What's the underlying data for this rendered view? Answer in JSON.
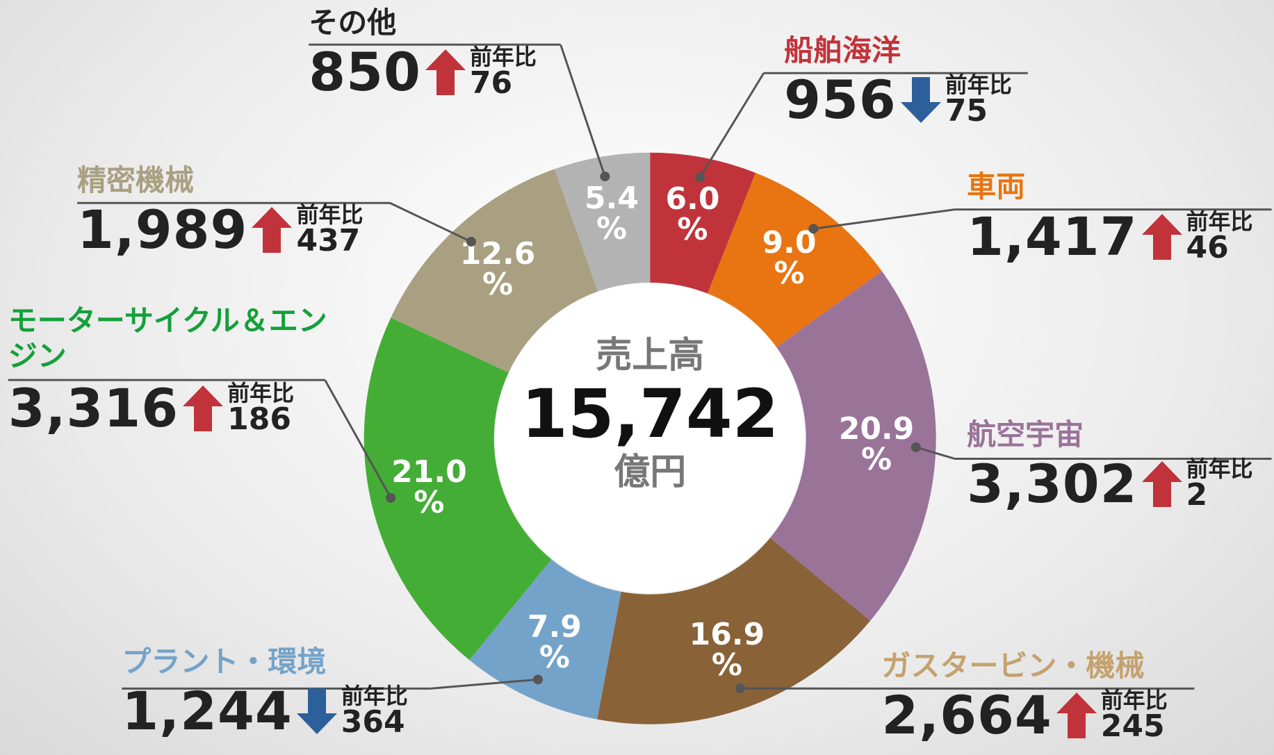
{
  "chart_data": {
    "type": "donut",
    "center": {
      "title": "売上高",
      "total": "15,742",
      "unit_label": "億円"
    },
    "categories": [
      "船舶海洋",
      "車両",
      "航空宇宙",
      "ガスタービン・機械",
      "プラント・環境",
      "モーターサイクル＆エンジン",
      "精密機械",
      "その他"
    ],
    "values": [
      6.0,
      9.0,
      20.9,
      16.9,
      7.9,
      21.0,
      12.6,
      5.4
    ],
    "value_labels": [
      "6.0",
      "9.0",
      "20.9",
      "16.9",
      "7.9",
      "21.0",
      "12.6",
      "5.4"
    ],
    "unit": "%",
    "colors": [
      "#c0333a",
      "#e87511",
      "#9a7399",
      "#8a6237",
      "#74a3c9",
      "#44ad36",
      "#a9a082",
      "#b3b3b3"
    ],
    "label_colors": [
      "#c0333a",
      "#e87511",
      "#9a7399",
      "#c4a26e",
      "#74a3c9",
      "#14a03a",
      "#a9a082",
      "#222222"
    ],
    "sales": [
      "956",
      "1,417",
      "3,302",
      "2,664",
      "1,244",
      "3,316",
      "1,989",
      "850"
    ],
    "yoy_label": "前年比",
    "yoy": [
      75,
      46,
      2,
      245,
      364,
      186,
      437,
      76
    ],
    "yoy_direction": [
      "down",
      "up",
      "up",
      "up",
      "down",
      "up",
      "up",
      "up"
    ],
    "arrow_colors": {
      "up": "#c0333a",
      "down": "#2d5f9a"
    }
  }
}
